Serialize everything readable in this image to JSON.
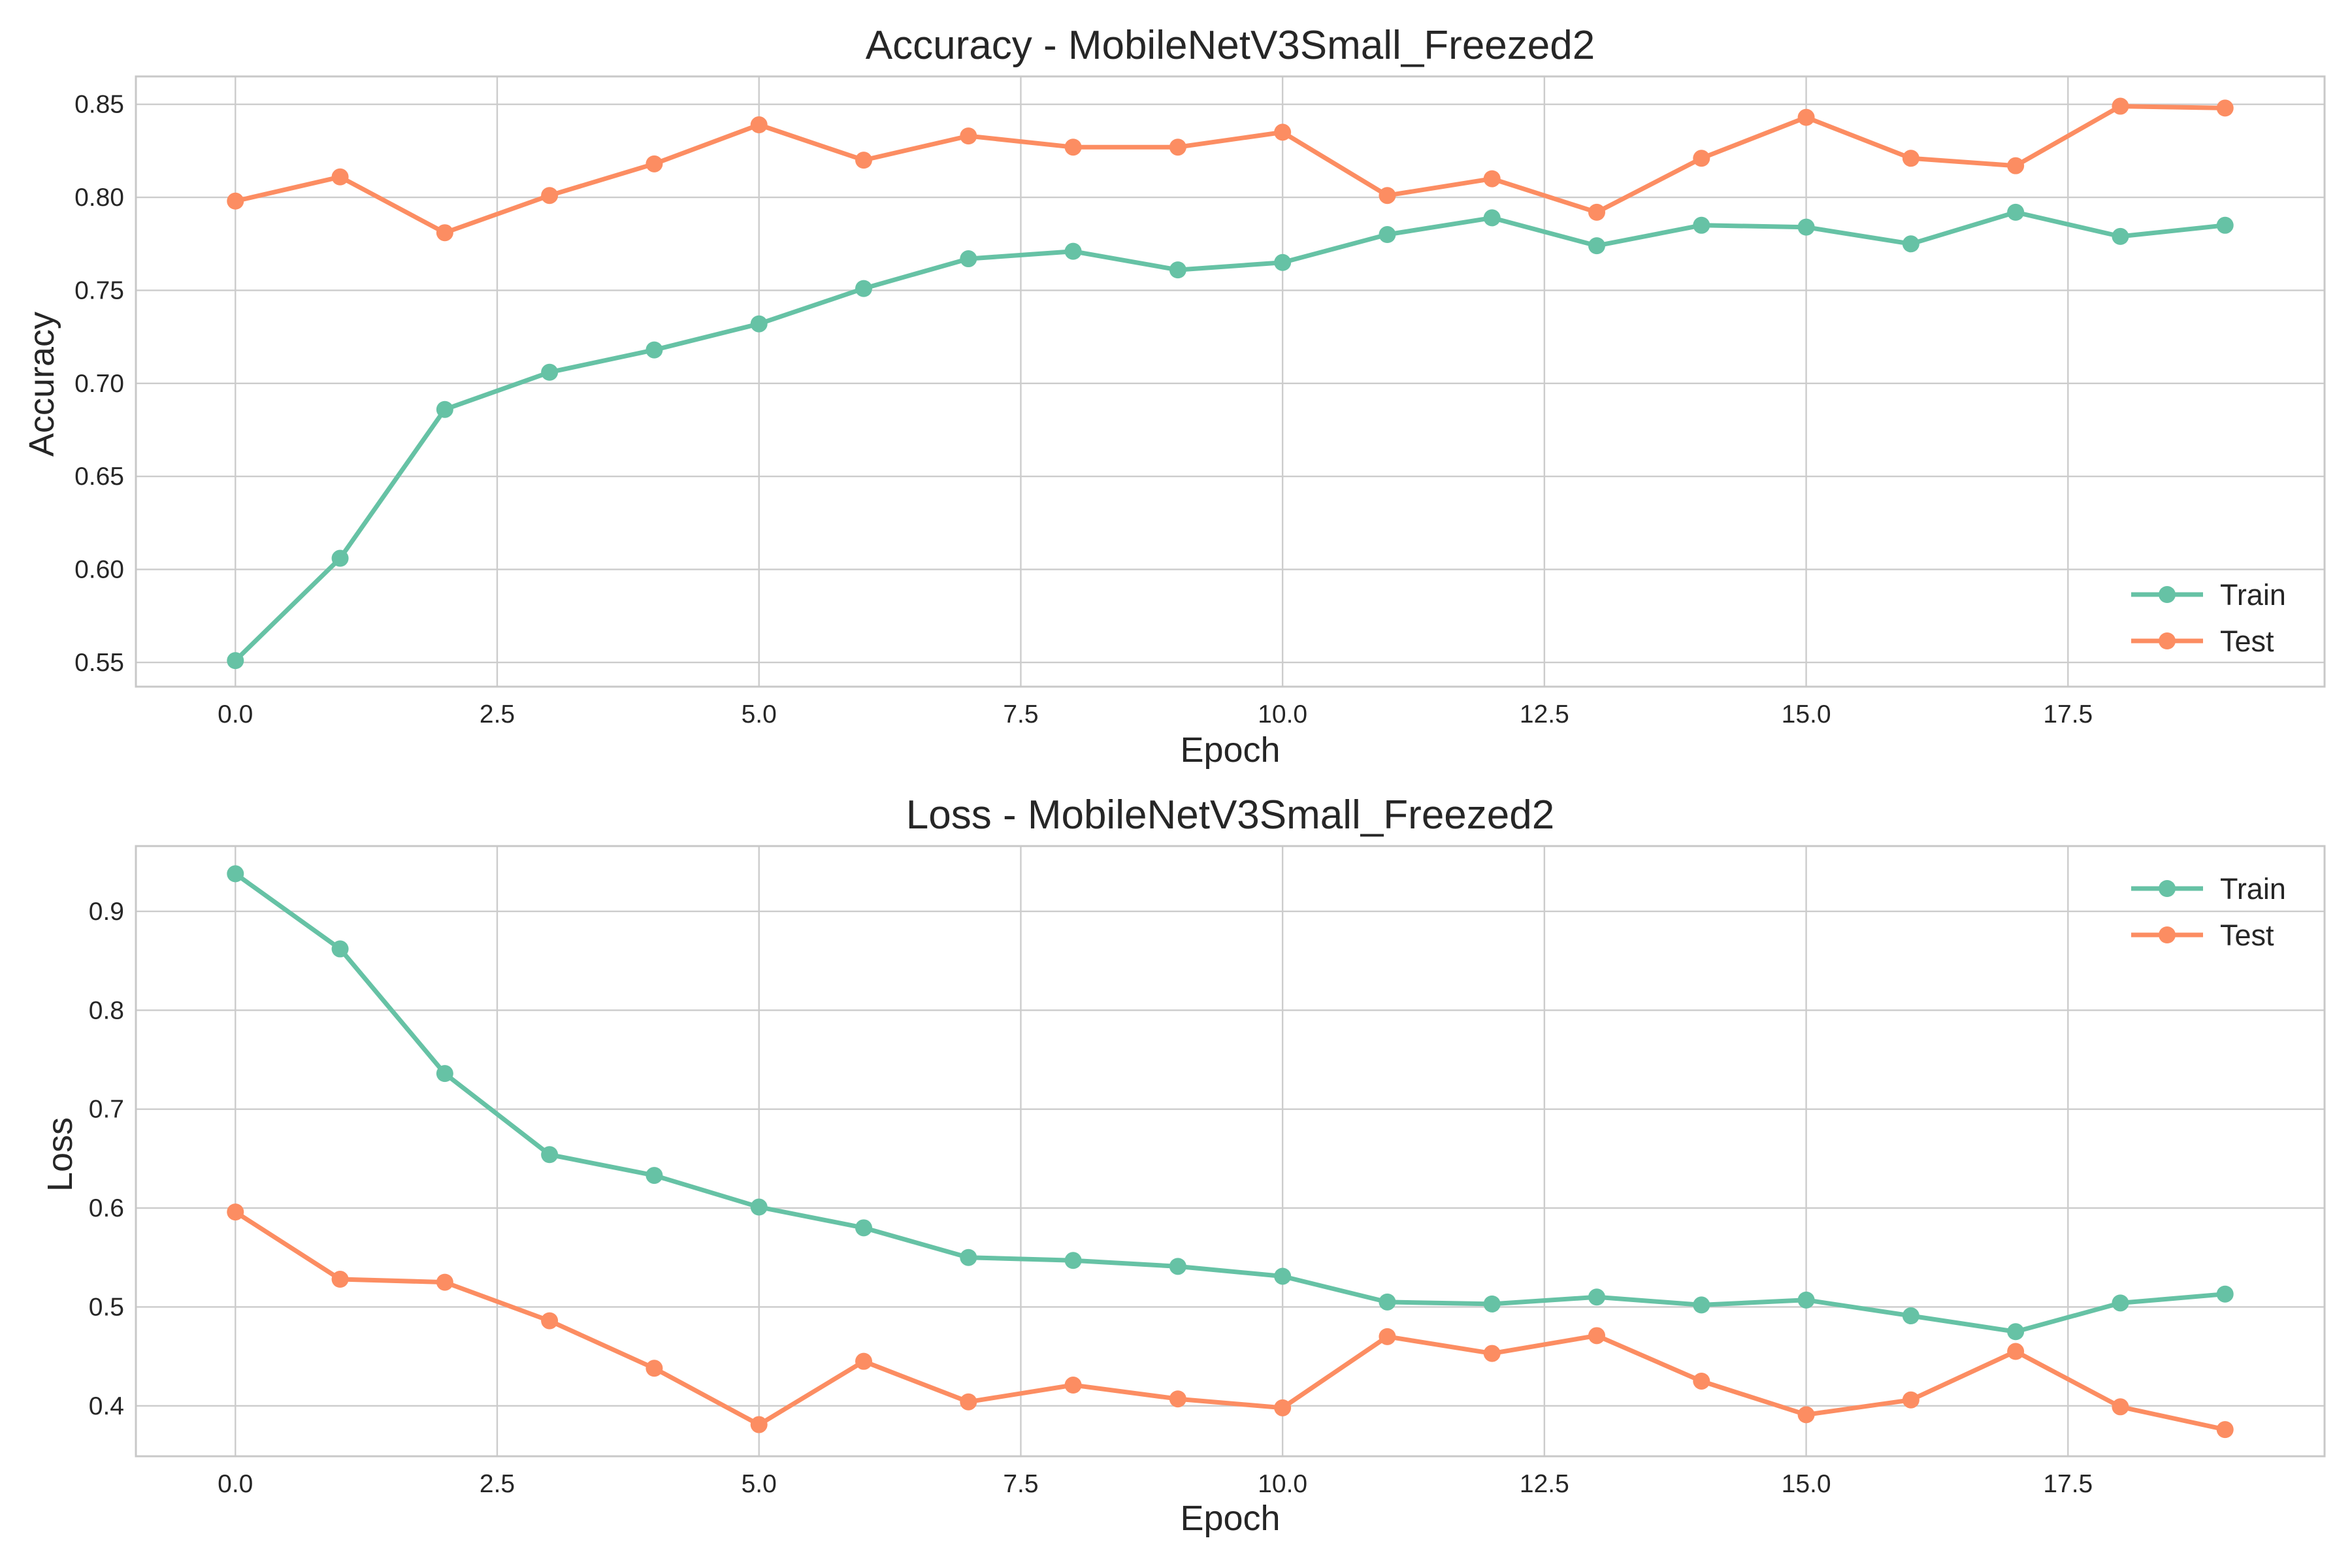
{
  "colors": {
    "train": "#66c2a5",
    "test": "#fc8d62"
  },
  "chart_data": [
    {
      "type": "line",
      "title": "Accuracy - MobileNetV3Small_Freezed2",
      "xlabel": "Epoch",
      "ylabel": "Accuracy",
      "x": [
        0,
        1,
        2,
        3,
        4,
        5,
        6,
        7,
        8,
        9,
        10,
        11,
        12,
        13,
        14,
        15,
        16,
        17,
        18,
        19
      ],
      "series": [
        {
          "name": "Train",
          "color_key": "train",
          "values": [
            0.551,
            0.606,
            0.686,
            0.706,
            0.718,
            0.732,
            0.751,
            0.767,
            0.771,
            0.761,
            0.765,
            0.78,
            0.789,
            0.774,
            0.785,
            0.784,
            0.775,
            0.792,
            0.779,
            0.785
          ]
        },
        {
          "name": "Test",
          "color_key": "test",
          "values": [
            0.798,
            0.811,
            0.781,
            0.801,
            0.818,
            0.839,
            0.82,
            0.833,
            0.827,
            0.827,
            0.835,
            0.801,
            0.81,
            0.792,
            0.821,
            0.843,
            0.821,
            0.817,
            0.849,
            0.848
          ]
        }
      ],
      "xlim": [
        -0.95,
        19.95
      ],
      "ylim": [
        0.537,
        0.865
      ],
      "xticks": [
        0.0,
        2.5,
        5.0,
        7.5,
        10.0,
        12.5,
        15.0,
        17.5
      ],
      "xtick_labels": [
        "0.0",
        "2.5",
        "5.0",
        "7.5",
        "10.0",
        "12.5",
        "15.0",
        "17.5"
      ],
      "yticks": [
        0.55,
        0.6,
        0.65,
        0.7,
        0.75,
        0.8,
        0.85
      ],
      "ytick_labels": [
        "0.55",
        "0.60",
        "0.65",
        "0.70",
        "0.75",
        "0.80",
        "0.85"
      ],
      "grid": true,
      "legend": "lower right"
    },
    {
      "type": "line",
      "title": "Loss - MobileNetV3Small_Freezed2",
      "xlabel": "Epoch",
      "ylabel": "Loss",
      "x": [
        0,
        1,
        2,
        3,
        4,
        5,
        6,
        7,
        8,
        9,
        10,
        11,
        12,
        13,
        14,
        15,
        16,
        17,
        18,
        19
      ],
      "series": [
        {
          "name": "Train",
          "color_key": "train",
          "values": [
            0.938,
            0.862,
            0.736,
            0.654,
            0.633,
            0.601,
            0.58,
            0.55,
            0.547,
            0.541,
            0.531,
            0.505,
            0.503,
            0.51,
            0.502,
            0.507,
            0.491,
            0.475,
            0.504,
            0.513
          ]
        },
        {
          "name": "Test",
          "color_key": "test",
          "values": [
            0.596,
            0.528,
            0.525,
            0.486,
            0.438,
            0.381,
            0.445,
            0.404,
            0.421,
            0.407,
            0.398,
            0.47,
            0.453,
            0.471,
            0.425,
            0.391,
            0.406,
            0.455,
            0.399,
            0.376
          ]
        }
      ],
      "xlim": [
        -0.95,
        19.95
      ],
      "ylim": [
        0.349,
        0.966
      ],
      "xticks": [
        0.0,
        2.5,
        5.0,
        7.5,
        10.0,
        12.5,
        15.0,
        17.5
      ],
      "xtick_labels": [
        "0.0",
        "2.5",
        "5.0",
        "7.5",
        "10.0",
        "12.5",
        "15.0",
        "17.5"
      ],
      "yticks": [
        0.4,
        0.5,
        0.6,
        0.7,
        0.8,
        0.9
      ],
      "ytick_labels": [
        "0.4",
        "0.5",
        "0.6",
        "0.7",
        "0.8",
        "0.9"
      ],
      "grid": true,
      "legend": "upper right"
    }
  ]
}
